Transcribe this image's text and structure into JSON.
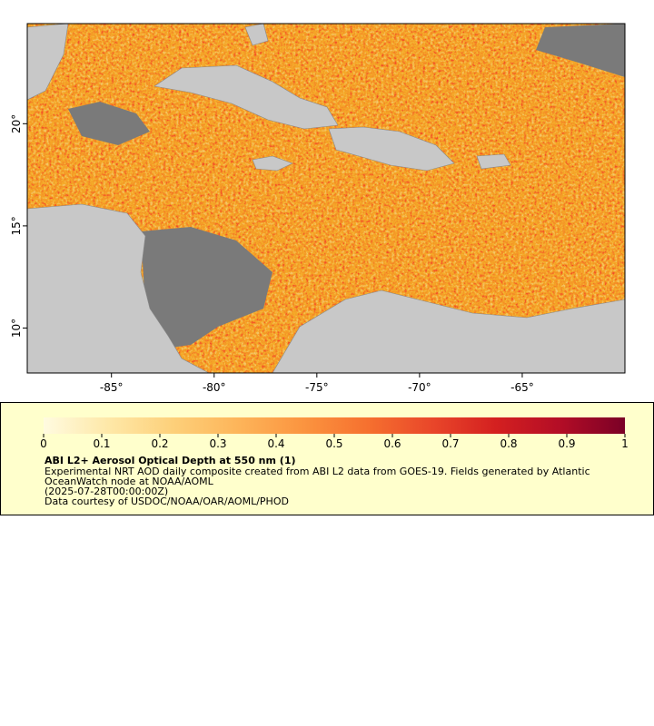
{
  "map": {
    "xlim": [
      -89.1,
      -60
    ],
    "ylim": [
      7.8,
      24.9
    ],
    "xticks": [
      {
        "value": -85,
        "label": "-85°"
      },
      {
        "value": -80,
        "label": "-80°"
      },
      {
        "value": -75,
        "label": "-75°"
      },
      {
        "value": -70,
        "label": "-70°"
      },
      {
        "value": -65,
        "label": "-65°"
      }
    ],
    "yticks": [
      {
        "value": 10,
        "label": "10°"
      },
      {
        "value": 15,
        "label": "15°"
      },
      {
        "value": 20,
        "label": "20°"
      }
    ]
  },
  "colorbar": {
    "range": [
      0,
      1
    ],
    "ticks": [
      0,
      0.1,
      0.2,
      0.3,
      0.4,
      0.5,
      0.6,
      0.7,
      0.8,
      0.9,
      1
    ],
    "colors": [
      "#fffbe0",
      "#fee8a8",
      "#fdd07a",
      "#fdb55a",
      "#fb9540",
      "#f6712f",
      "#e9472a",
      "#d42020",
      "#b30d26",
      "#7a0026"
    ]
  },
  "legend": {
    "title": "ABI L2+ Aerosol Optical Depth at 550 nm (1)",
    "description": "Experimental NRT AOD daily composite created from ABI L2 data from GOES-19. Fields generated by Atlantic OceanWatch node at NOAA/AOML",
    "time": "(2025-07-28T00:00:00Z)",
    "credit": "Data courtesy of USDOC/NOAA/OAR/AOML/PHOD"
  }
}
